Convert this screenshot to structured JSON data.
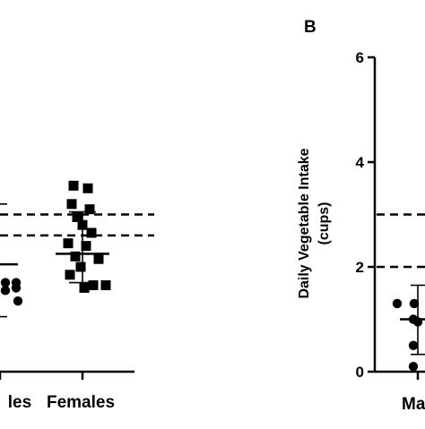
{
  "chart_data": [
    {
      "type": "scatter",
      "panel_label": "",
      "title": "",
      "xlabel": "",
      "ylabel": "",
      "ylim": [
        0,
        6
      ],
      "categories": [
        "Males",
        "Females"
      ],
      "category_labels_visible": [
        "les",
        "Females"
      ],
      "reference_lines": [
        3,
        2.6
      ],
      "series": [
        {
          "category": "Males",
          "marker": "circle",
          "values": [
            1.7,
            1.7,
            1.55,
            1.6,
            1.35
          ],
          "mean": 2.05,
          "sd_upper": 3.2,
          "sd_lower": 1.05
        },
        {
          "category": "Females",
          "marker": "square",
          "values": [
            3.55,
            3.5,
            3.2,
            3.1,
            2.95,
            2.8,
            2.65,
            2.45,
            2.4,
            2.2,
            2.15,
            2.0,
            1.85,
            1.65,
            1.6,
            1.65
          ],
          "mean": 2.25,
          "sd_upper": 3.05,
          "sd_lower": 1.7
        }
      ]
    },
    {
      "type": "scatter",
      "panel_label": "B",
      "title": "",
      "xlabel": "",
      "ylabel": "Daily Vegetable Intake\n(cups)",
      "ylabel_line1": "Daily Vegetable Intake",
      "ylabel_line2": "(cups)",
      "ylim": [
        0,
        6
      ],
      "yticks": [
        "0",
        "2",
        "4",
        "6"
      ],
      "categories": [
        "Males"
      ],
      "category_labels_visible": [
        "Ma"
      ],
      "reference_lines": [
        3,
        2
      ],
      "series": [
        {
          "category": "Males",
          "marker": "circle",
          "values": [
            1.3,
            1.3,
            1.0,
            0.95,
            0.5,
            0.1
          ],
          "mean": 1.0,
          "sd_upper": 1.65,
          "sd_lower": 0.33
        }
      ]
    }
  ]
}
